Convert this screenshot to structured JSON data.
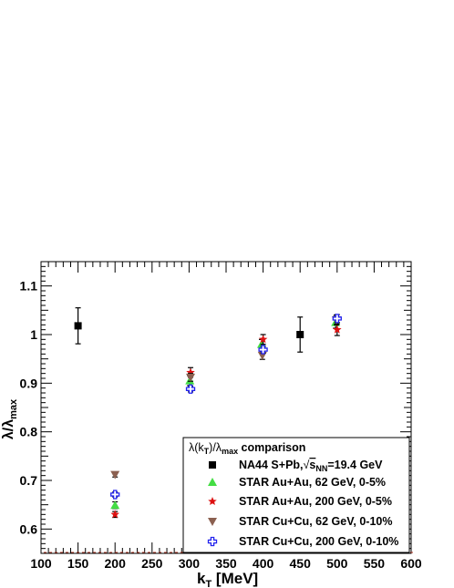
{
  "chart_data": {
    "type": "scatter",
    "xlabel_main": "k",
    "xlabel_sub": "T",
    "xlabel_unit": " [MeV]",
    "ylabel_main": "λ/λ",
    "ylabel_sub": "max",
    "xlim": [
      100,
      600
    ],
    "ylim": [
      0.55,
      1.15
    ],
    "x_ticks": [
      100,
      150,
      200,
      250,
      300,
      350,
      400,
      450,
      500,
      550,
      600
    ],
    "y_ticks": [
      0.6,
      0.7,
      0.8,
      0.9,
      1.0,
      1.1
    ],
    "y_tick_labels": [
      "0.6",
      "0.7",
      "0.8",
      "0.9",
      "1",
      "1.1"
    ],
    "legend": {
      "title_pre": "λ(k",
      "title_sub1": "T",
      "title_mid": ")/λ",
      "title_sub2": "max",
      "title_post": " comparison",
      "position": "bottom-right"
    },
    "series": [
      {
        "name_pre": "NA44 S+Pb,",
        "name_root": "s",
        "name_sub": "NN",
        "name_post": "=19.4 GeV",
        "marker": "square",
        "color": "#000000",
        "points": [
          {
            "x": 150,
            "y": 1.018,
            "err": 0.037
          },
          {
            "x": 450,
            "y": 1.0,
            "err": 0.036
          }
        ]
      },
      {
        "name": "STAR Au+Au, 62 GeV, 0-5%",
        "marker": "triangle-up",
        "color": "#44dd44",
        "points": [
          {
            "x": 200,
            "y": 0.649,
            "err": 0.007
          },
          {
            "x": 301,
            "y": 0.905,
            "err": 0.01
          },
          {
            "x": 398,
            "y": 0.98,
            "err": 0.01
          },
          {
            "x": 498,
            "y": 1.025,
            "err": 0.012
          }
        ]
      },
      {
        "name": "STAR Au+Au, 200 GeV, 0-5%",
        "marker": "star",
        "color": "#dd1111",
        "points": [
          {
            "x": 200,
            "y": 0.63,
            "err": 0.006
          },
          {
            "x": 302,
            "y": 0.922,
            "err": 0.01
          },
          {
            "x": 400,
            "y": 0.99,
            "err": 0.01
          },
          {
            "x": 500,
            "y": 1.01,
            "err": 0.012
          }
        ]
      },
      {
        "name": "STAR Cu+Cu, 62 GeV, 0-10%",
        "marker": "triangle-down",
        "color": "#8b6050",
        "points": [
          {
            "x": 200,
            "y": 0.712,
            "err": 0.005
          },
          {
            "x": 302,
            "y": 0.912,
            "err": 0.008
          },
          {
            "x": 399,
            "y": 0.957,
            "err": 0.008
          },
          {
            "x": 499,
            "y": 1.03,
            "err": 0.01
          }
        ]
      },
      {
        "name": "STAR Cu+Cu, 200 GeV, 0-10%",
        "marker": "open-cross",
        "color": "#2222ee",
        "points": [
          {
            "x": 200,
            "y": 0.671,
            "err": 0.005
          },
          {
            "x": 302,
            "y": 0.888,
            "err": 0.006
          },
          {
            "x": 400,
            "y": 0.969,
            "err": 0.007
          },
          {
            "x": 500,
            "y": 1.033,
            "err": 0.008
          }
        ]
      }
    ]
  }
}
